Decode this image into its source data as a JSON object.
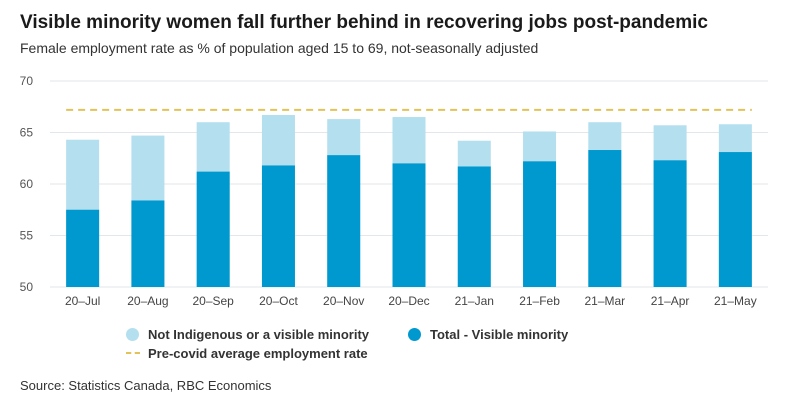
{
  "title": "Visible minority women fall further behind in recovering jobs post-pandemic",
  "subtitle": "Female employment rate as % of population aged 15 to 69, not-seasonally adjusted",
  "source": "Source: Statistics Canada, RBC Economics",
  "colors": {
    "not_indigenous": "#b3dfee",
    "visible_minority": "#0099cf",
    "precovid": "#e2c35a",
    "grid": "#e3e6ea"
  },
  "chart_data": {
    "type": "bar",
    "title": "Visible minority women fall further behind in recovering jobs post-pandemic",
    "subtitle": "Female employment rate as % of population aged 15 to 69, not-seasonally adjusted",
    "categories": [
      "20–Jul",
      "20–Aug",
      "20–Sep",
      "20–Oct",
      "20–Nov",
      "20–Dec",
      "21–Jan",
      "21–Feb",
      "21–Mar",
      "21–Apr",
      "21–May"
    ],
    "ylim": [
      50,
      70
    ],
    "yticks": [
      50,
      55,
      60,
      65,
      70
    ],
    "grid": true,
    "legend": "bottom",
    "series": [
      {
        "name": "Not Indigenous or a visible minority",
        "type": "bar",
        "values": [
          64.3,
          64.7,
          66.0,
          66.7,
          66.3,
          66.5,
          64.2,
          65.1,
          66.0,
          65.7,
          65.8
        ]
      },
      {
        "name": "Total - Visible minority",
        "type": "bar",
        "values": [
          57.5,
          58.4,
          61.2,
          61.8,
          62.8,
          62.0,
          61.7,
          62.2,
          63.3,
          62.3,
          63.1
        ]
      },
      {
        "name": "Pre-covid average employment rate",
        "type": "line",
        "values": [
          67.2,
          67.2,
          67.2,
          67.2,
          67.2,
          67.2,
          67.2,
          67.2,
          67.2,
          67.2,
          67.2
        ]
      }
    ]
  }
}
